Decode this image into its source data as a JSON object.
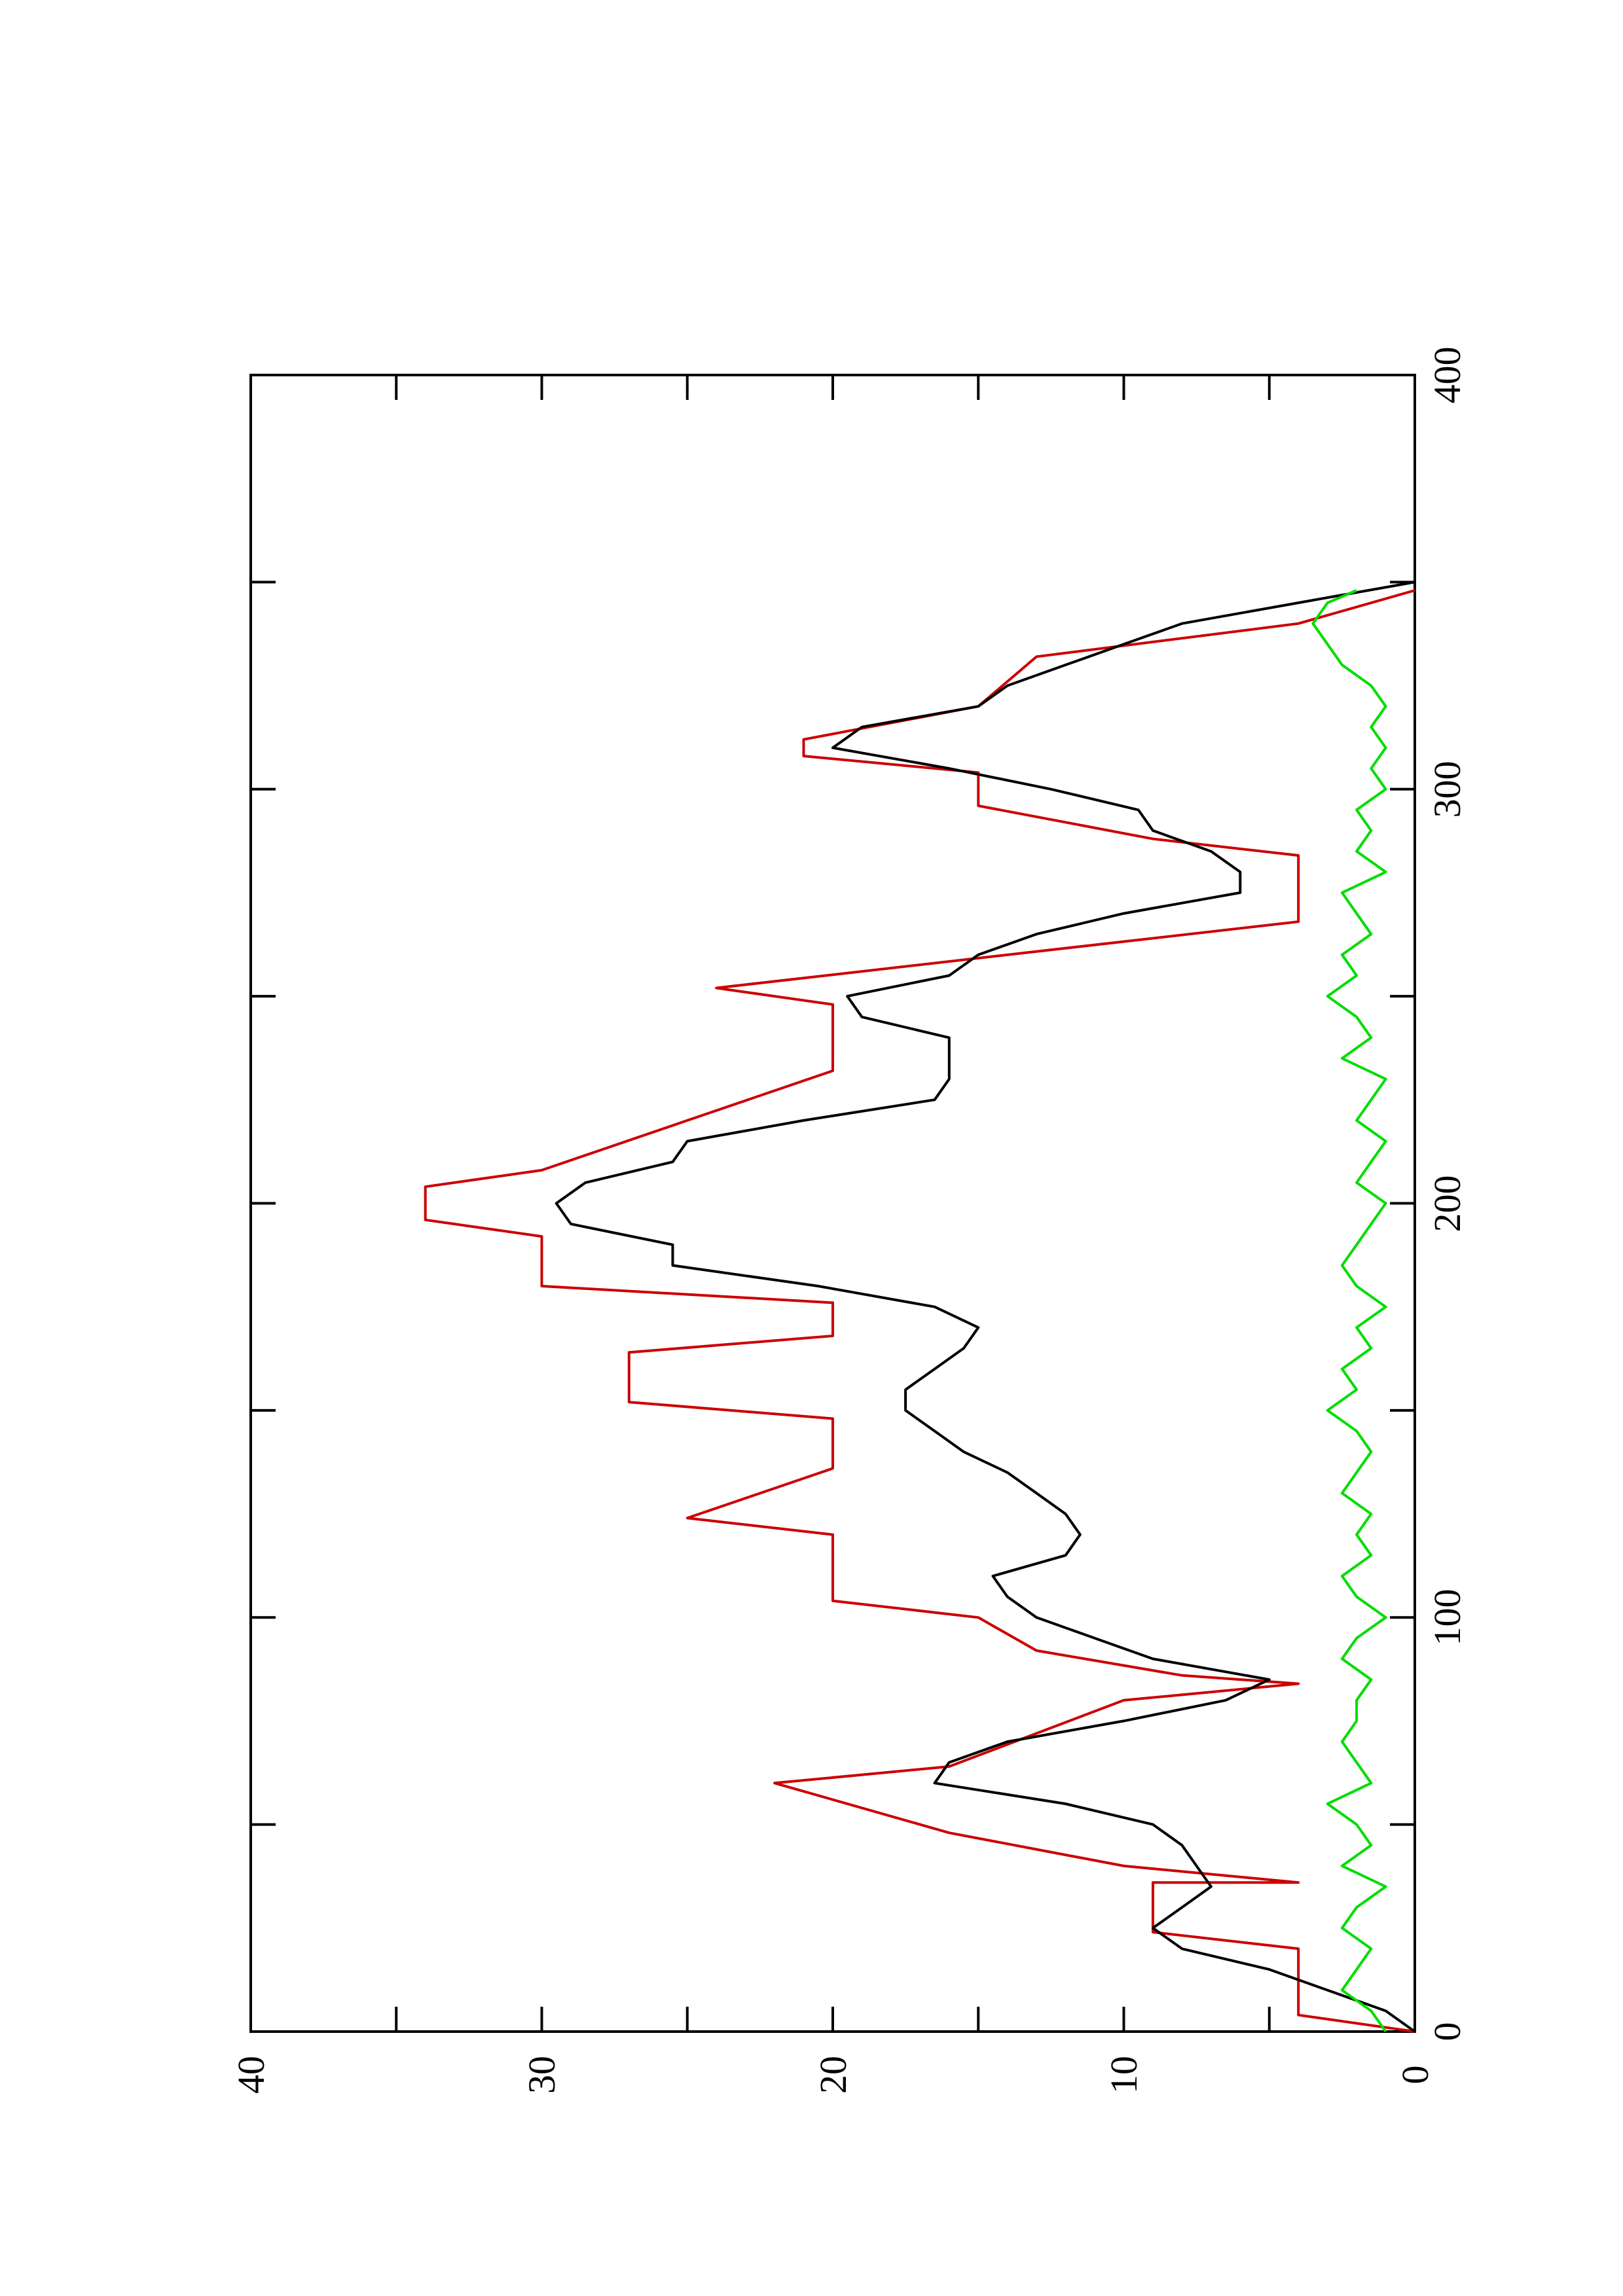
{
  "chart_data": {
    "type": "line",
    "orientation": "rotated-90-ccw",
    "xlim": [
      0,
      400
    ],
    "ylim": [
      0,
      40
    ],
    "x_ticks": [
      "0",
      "100",
      "200",
      "300",
      "400"
    ],
    "y_ticks": [
      "0",
      "10",
      "20",
      "30",
      "40"
    ],
    "grid": false,
    "legend": "none",
    "series": [
      {
        "color": "#cc0000",
        "points": [
          [
            0,
            0
          ],
          [
            4,
            4
          ],
          [
            20,
            4
          ],
          [
            24,
            9
          ],
          [
            36,
            9
          ],
          [
            36,
            4
          ],
          [
            40,
            10
          ],
          [
            44,
            13
          ],
          [
            48,
            16
          ],
          [
            60,
            22
          ],
          [
            64,
            16
          ],
          [
            72,
            13
          ],
          [
            80,
            10
          ],
          [
            84,
            4
          ],
          [
            86,
            8
          ],
          [
            92,
            13
          ],
          [
            100,
            15
          ],
          [
            104,
            20
          ],
          [
            120,
            20
          ],
          [
            124,
            25
          ],
          [
            136,
            20
          ],
          [
            148,
            20
          ],
          [
            152,
            27
          ],
          [
            164,
            27
          ],
          [
            168,
            20
          ],
          [
            176,
            20
          ],
          [
            180,
            30
          ],
          [
            192,
            30
          ],
          [
            196,
            34
          ],
          [
            204,
            34
          ],
          [
            208,
            30
          ],
          [
            220,
            25
          ],
          [
            232,
            20
          ],
          [
            248,
            20
          ],
          [
            252,
            24
          ],
          [
            268,
            4
          ],
          [
            284,
            4
          ],
          [
            288,
            9
          ],
          [
            296,
            15
          ],
          [
            304,
            15
          ],
          [
            308,
            21
          ],
          [
            312,
            21
          ],
          [
            320,
            15
          ],
          [
            332,
            13
          ],
          [
            340,
            4
          ],
          [
            348,
            0
          ]
        ]
      },
      {
        "color": "#000000",
        "points": [
          [
            0,
            0
          ],
          [
            5,
            1
          ],
          [
            10,
            3
          ],
          [
            15,
            5
          ],
          [
            20,
            8
          ],
          [
            25,
            9
          ],
          [
            30,
            8
          ],
          [
            35,
            7
          ],
          [
            40,
            7.5
          ],
          [
            45,
            8
          ],
          [
            50,
            9
          ],
          [
            55,
            12
          ],
          [
            60,
            16.5
          ],
          [
            65,
            16
          ],
          [
            70,
            14
          ],
          [
            75,
            10
          ],
          [
            80,
            6.5
          ],
          [
            85,
            5
          ],
          [
            90,
            9
          ],
          [
            95,
            11
          ],
          [
            100,
            13
          ],
          [
            105,
            14
          ],
          [
            110,
            14.5
          ],
          [
            115,
            12
          ],
          [
            120,
            11.5
          ],
          [
            125,
            12
          ],
          [
            130,
            13
          ],
          [
            135,
            14
          ],
          [
            140,
            15.5
          ],
          [
            145,
            16.5
          ],
          [
            150,
            17.5
          ],
          [
            155,
            17.5
          ],
          [
            160,
            16.5
          ],
          [
            165,
            15.5
          ],
          [
            170,
            15
          ],
          [
            175,
            16.5
          ],
          [
            180,
            20.5
          ],
          [
            185,
            25.5
          ],
          [
            190,
            25.5
          ],
          [
            195,
            29
          ],
          [
            200,
            29.5
          ],
          [
            205,
            28.5
          ],
          [
            210,
            25.5
          ],
          [
            215,
            25
          ],
          [
            220,
            21
          ],
          [
            225,
            16.5
          ],
          [
            230,
            16
          ],
          [
            240,
            16
          ],
          [
            245,
            19
          ],
          [
            250,
            19.5
          ],
          [
            255,
            16
          ],
          [
            260,
            15
          ],
          [
            265,
            13
          ],
          [
            270,
            10
          ],
          [
            275,
            6
          ],
          [
            280,
            6
          ],
          [
            285,
            7
          ],
          [
            290,
            9
          ],
          [
            295,
            9.5
          ],
          [
            300,
            12.5
          ],
          [
            305,
            16
          ],
          [
            310,
            20
          ],
          [
            315,
            19
          ],
          [
            320,
            15
          ],
          [
            325,
            14
          ],
          [
            330,
            12
          ],
          [
            335,
            10
          ],
          [
            340,
            8
          ],
          [
            345,
            4
          ],
          [
            350,
            0
          ]
        ]
      },
      {
        "color": "#00dd00",
        "points": [
          [
            0,
            1
          ],
          [
            5,
            1.5
          ],
          [
            10,
            2.5
          ],
          [
            15,
            2
          ],
          [
            20,
            1.5
          ],
          [
            25,
            2.5
          ],
          [
            30,
            2
          ],
          [
            35,
            1
          ],
          [
            40,
            2.5
          ],
          [
            45,
            1.5
          ],
          [
            50,
            2
          ],
          [
            55,
            3
          ],
          [
            60,
            1.5
          ],
          [
            65,
            2
          ],
          [
            70,
            2.5
          ],
          [
            75,
            2
          ],
          [
            80,
            2
          ],
          [
            85,
            1.5
          ],
          [
            90,
            2.5
          ],
          [
            95,
            2
          ],
          [
            100,
            1
          ],
          [
            105,
            2
          ],
          [
            110,
            2.5
          ],
          [
            115,
            1.5
          ],
          [
            120,
            2
          ],
          [
            125,
            1.5
          ],
          [
            130,
            2.5
          ],
          [
            135,
            2
          ],
          [
            140,
            1.5
          ],
          [
            145,
            2
          ],
          [
            150,
            3
          ],
          [
            155,
            2
          ],
          [
            160,
            2.5
          ],
          [
            165,
            1.5
          ],
          [
            170,
            2
          ],
          [
            175,
            1
          ],
          [
            180,
            2
          ],
          [
            185,
            2.5
          ],
          [
            190,
            2
          ],
          [
            195,
            1.5
          ],
          [
            200,
            1
          ],
          [
            205,
            2
          ],
          [
            210,
            1.5
          ],
          [
            215,
            1
          ],
          [
            220,
            2
          ],
          [
            225,
            1.5
          ],
          [
            230,
            1
          ],
          [
            235,
            2.5
          ],
          [
            240,
            1.5
          ],
          [
            245,
            2
          ],
          [
            250,
            3
          ],
          [
            255,
            2
          ],
          [
            260,
            2.5
          ],
          [
            265,
            1.5
          ],
          [
            270,
            2
          ],
          [
            275,
            2.5
          ],
          [
            280,
            1
          ],
          [
            285,
            2
          ],
          [
            290,
            1.5
          ],
          [
            295,
            2
          ],
          [
            300,
            1
          ],
          [
            305,
            1.5
          ],
          [
            310,
            1
          ],
          [
            315,
            1.5
          ],
          [
            320,
            1
          ],
          [
            325,
            1.5
          ],
          [
            330,
            2.5
          ],
          [
            335,
            3
          ],
          [
            340,
            3.5
          ],
          [
            345,
            3
          ],
          [
            348,
            2
          ]
        ]
      }
    ]
  }
}
